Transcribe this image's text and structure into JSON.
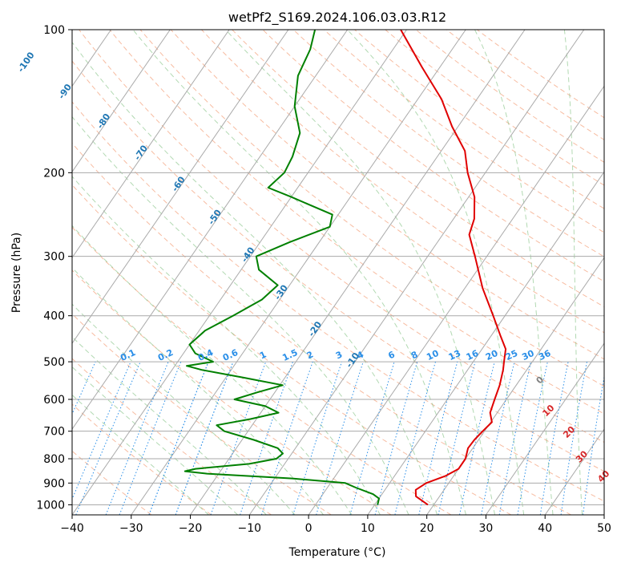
{
  "chart_data": {
    "type": "line",
    "subtype": "skew-T log-P diagram",
    "title": "wetPf2_S169.2024.106.03.03.R12",
    "xlabel": "Temperature (°C)",
    "ylabel": "Pressure (hPa)",
    "xlim": [
      -40,
      50
    ],
    "ylim": [
      1050,
      100
    ],
    "y_scale": "log",
    "grid": true,
    "x_ticks": [
      "−40",
      "−30",
      "−20",
      "−10",
      "0",
      "10",
      "20",
      "30",
      "40",
      "50"
    ],
    "y_ticks": [
      "100",
      "200",
      "300",
      "400",
      "500",
      "600",
      "700",
      "800",
      "900",
      "1000"
    ],
    "colors": {
      "temperature": "#e00000",
      "dewpoint": "#008000",
      "isotherm_labels": "#1f77b4",
      "mixing_ratio": "#2a8fe8",
      "moist_labels": "#d62728",
      "dry_adiabat": "#f4a582",
      "moist_adiabat": "#7fbf7f",
      "zero_label": "#808080"
    },
    "isotherm_labels": [
      "-100",
      "-90",
      "-80",
      "-70",
      "-60",
      "-50",
      "-40",
      "-30",
      "-20",
      "-10"
    ],
    "mixing_ratio_labels": [
      "0.1",
      "0.2",
      "0.4",
      "0.6",
      "1",
      "1.5",
      "2",
      "3",
      "4",
      "6",
      "8",
      "10",
      "13",
      "16",
      "20",
      "25",
      "30",
      "36"
    ],
    "moist_adiabat_labels": [
      "0",
      "10",
      "20",
      "30",
      "40"
    ],
    "series": [
      {
        "label": "temperature",
        "points": [
          {
            "p": 1000,
            "t": 19.0
          },
          {
            "p": 960,
            "t": 16.0
          },
          {
            "p": 930,
            "t": 15.2
          },
          {
            "p": 900,
            "t": 16.2
          },
          {
            "p": 870,
            "t": 18.6
          },
          {
            "p": 840,
            "t": 20.0
          },
          {
            "p": 800,
            "t": 20.0
          },
          {
            "p": 760,
            "t": 19.2
          },
          {
            "p": 730,
            "t": 19.3
          },
          {
            "p": 700,
            "t": 19.7
          },
          {
            "p": 670,
            "t": 20.2
          },
          {
            "p": 640,
            "t": 18.8
          },
          {
            "p": 600,
            "t": 18.0
          },
          {
            "p": 560,
            "t": 17.2
          },
          {
            "p": 520,
            "t": 16.0
          },
          {
            "p": 500,
            "t": 15.2
          },
          {
            "p": 470,
            "t": 14.0
          },
          {
            "p": 440,
            "t": 11.5
          },
          {
            "p": 400,
            "t": 8.0
          },
          {
            "p": 350,
            "t": 3.0
          },
          {
            "p": 300,
            "t": -2.0
          },
          {
            "p": 270,
            "t": -5.5
          },
          {
            "p": 250,
            "t": -6.5
          },
          {
            "p": 225,
            "t": -9.0
          },
          {
            "p": 200,
            "t": -13.0
          },
          {
            "p": 180,
            "t": -16.0
          },
          {
            "p": 160,
            "t": -21.0
          },
          {
            "p": 140,
            "t": -26.0
          },
          {
            "p": 120,
            "t": -33.0
          },
          {
            "p": 100,
            "t": -41.0
          }
        ]
      },
      {
        "label": "dewpoint",
        "points": [
          {
            "p": 1000,
            "t": 10.5
          },
          {
            "p": 970,
            "t": 10.0
          },
          {
            "p": 950,
            "t": 8.5
          },
          {
            "p": 920,
            "t": 4.8
          },
          {
            "p": 900,
            "t": 2.5
          },
          {
            "p": 880,
            "t": -7.0
          },
          {
            "p": 860,
            "t": -22.0
          },
          {
            "p": 850,
            "t": -26.0
          },
          {
            "p": 840,
            "t": -24.5
          },
          {
            "p": 820,
            "t": -16.0
          },
          {
            "p": 800,
            "t": -12.0
          },
          {
            "p": 780,
            "t": -11.5
          },
          {
            "p": 760,
            "t": -13.0
          },
          {
            "p": 730,
            "t": -18.0
          },
          {
            "p": 700,
            "t": -24.0
          },
          {
            "p": 680,
            "t": -26.0
          },
          {
            "p": 660,
            "t": -21.0
          },
          {
            "p": 640,
            "t": -17.0
          },
          {
            "p": 620,
            "t": -20.0
          },
          {
            "p": 600,
            "t": -26.0
          },
          {
            "p": 580,
            "t": -23.0
          },
          {
            "p": 560,
            "t": -19.5
          },
          {
            "p": 540,
            "t": -27.0
          },
          {
            "p": 520,
            "t": -35.0
          },
          {
            "p": 510,
            "t": -38.0
          },
          {
            "p": 500,
            "t": -34.0
          },
          {
            "p": 480,
            "t": -38.0
          },
          {
            "p": 460,
            "t": -40.0
          },
          {
            "p": 430,
            "t": -39.0
          },
          {
            "p": 400,
            "t": -36.0
          },
          {
            "p": 370,
            "t": -33.0
          },
          {
            "p": 345,
            "t": -32.0
          },
          {
            "p": 320,
            "t": -37.0
          },
          {
            "p": 300,
            "t": -39.0
          },
          {
            "p": 280,
            "t": -35.0
          },
          {
            "p": 260,
            "t": -30.0
          },
          {
            "p": 245,
            "t": -31.0
          },
          {
            "p": 225,
            "t": -40.0
          },
          {
            "p": 215,
            "t": -45.0
          },
          {
            "p": 200,
            "t": -44.0
          },
          {
            "p": 185,
            "t": -44.5
          },
          {
            "p": 165,
            "t": -46.0
          },
          {
            "p": 145,
            "t": -50.0
          },
          {
            "p": 125,
            "t": -53.0
          },
          {
            "p": 110,
            "t": -54.0
          },
          {
            "p": 100,
            "t": -55.5
          }
        ]
      }
    ]
  }
}
